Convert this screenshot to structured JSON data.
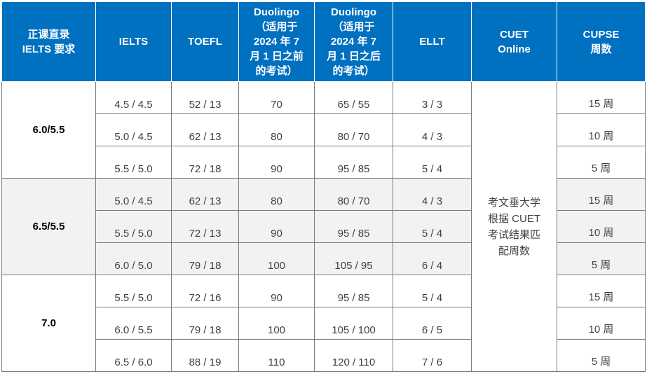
{
  "headers": [
    {
      "lines": [
        "正课直录",
        "IELTS 要求"
      ]
    },
    {
      "lines": [
        "IELTS"
      ]
    },
    {
      "lines": [
        "TOEFL"
      ]
    },
    {
      "lines": [
        "Duolingo",
        "（适用于",
        "2024 年 7",
        "月 1 日之前",
        "的考试）"
      ]
    },
    {
      "lines": [
        "Duolingo",
        "（适用于",
        "2024 年 7",
        "月 1 日之后",
        "的考试）"
      ]
    },
    {
      "lines": [
        "ELLT"
      ]
    },
    {
      "lines": [
        "CUET",
        "Online"
      ]
    },
    {
      "lines": [
        "CUPSE",
        "周数"
      ]
    }
  ],
  "groups": [
    {
      "label": "6.0/5.5"
    },
    {
      "label": "6.5/5.5"
    },
    {
      "label": "7.0"
    }
  ],
  "cuet_merged": [
    "考文垂大学",
    "根据 CUET",
    "考试结果匹",
    "配周数"
  ],
  "rows": [
    {
      "ielts": "4.5 / 4.5",
      "toefl": "52 / 13",
      "duo_before": "70",
      "duo_after": "65 / 55",
      "ellt": "3 / 3",
      "weeks": "15 周"
    },
    {
      "ielts": "5.0 / 4.5",
      "toefl": "62 / 13",
      "duo_before": "80",
      "duo_after": "80 / 70",
      "ellt": "4 / 3",
      "weeks": "10 周"
    },
    {
      "ielts": "5.5 / 5.0",
      "toefl": "72 / 18",
      "duo_before": "90",
      "duo_after": "95 / 85",
      "ellt": "5 / 4",
      "weeks": "5 周"
    },
    {
      "ielts": "5.0 / 4.5",
      "toefl": "62 / 13",
      "duo_before": "80",
      "duo_after": "80 / 70",
      "ellt": "4 / 3",
      "weeks": "15 周"
    },
    {
      "ielts": "5.5 / 5.0",
      "toefl": "72 / 13",
      "duo_before": "90",
      "duo_after": "95 / 85",
      "ellt": "5 / 4",
      "weeks": "10 周"
    },
    {
      "ielts": "6.0 / 5.0",
      "toefl": "79 / 18",
      "duo_before": "100",
      "duo_after": "105 / 95",
      "ellt": "6 / 4",
      "weeks": "5 周"
    },
    {
      "ielts": "5.5 / 5.0",
      "toefl": "72 / 16",
      "duo_before": "90",
      "duo_after": "95 / 85",
      "ellt": "5 / 4",
      "weeks": "15 周"
    },
    {
      "ielts": "6.0 / 5.5",
      "toefl": "79 / 18",
      "duo_before": "100",
      "duo_after": "105 / 100",
      "ellt": "6 / 5",
      "weeks": "10 周"
    },
    {
      "ielts": "6.5 / 6.0",
      "toefl": "88 / 19",
      "duo_before": "110",
      "duo_after": "120 / 110",
      "ellt": "7 / 6",
      "weeks": "5 周"
    }
  ],
  "colors": {
    "header_bg": "#0070c0",
    "header_text": "#ffffff",
    "shaded_row": "#f2f2f2"
  }
}
